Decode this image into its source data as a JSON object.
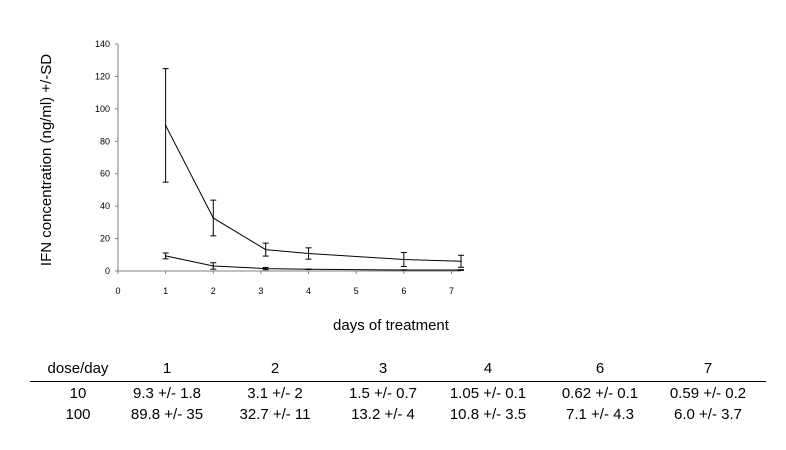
{
  "chart_data": {
    "type": "line",
    "ylabel": "IFN concentration (ng/ml) +/-SD",
    "xlabel": "days of treatment",
    "xlim": [
      0,
      7.2
    ],
    "ylim": [
      0,
      140
    ],
    "x_ticks": [
      "0",
      "1",
      "2",
      "3",
      "4",
      "5",
      "6",
      "7"
    ],
    "y_ticks": [
      "0",
      "20",
      "40",
      "60",
      "80",
      "100",
      "120",
      "140"
    ],
    "grid": false,
    "series": [
      {
        "x": [
          1,
          2,
          3.1,
          4,
          6,
          7.2
        ],
        "values": [
          9.3,
          3.1,
          1.5,
          1.05,
          0.62,
          0.59
        ],
        "error": [
          1.8,
          2,
          0.7,
          0.1,
          0.1,
          0.2
        ]
      },
      {
        "x": [
          1,
          2,
          3.1,
          4,
          6,
          7.2
        ],
        "values": [
          89.8,
          32.7,
          13.2,
          10.8,
          7.1,
          6.0
        ],
        "error": [
          35,
          11,
          4,
          3.5,
          4.3,
          3.7
        ]
      }
    ]
  },
  "table": {
    "header": [
      "dose/day",
      "1",
      "2",
      "3",
      "4",
      "6",
      "7"
    ],
    "rows": [
      [
        "10",
        "9.3 +/- 1.8",
        "3.1 +/- 2",
        "1.5 +/- 0.7",
        "1.05 +/- 0.1",
        "0.62 +/- 0.1",
        "0.59 +/- 0.2"
      ],
      [
        "100",
        "89.8 +/- 35",
        "32.7 +/- 11",
        "13.2 +/- 4",
        "10.8 +/- 3.5",
        "7.1 +/- 4.3",
        "6.0 +/- 3.7"
      ]
    ]
  }
}
